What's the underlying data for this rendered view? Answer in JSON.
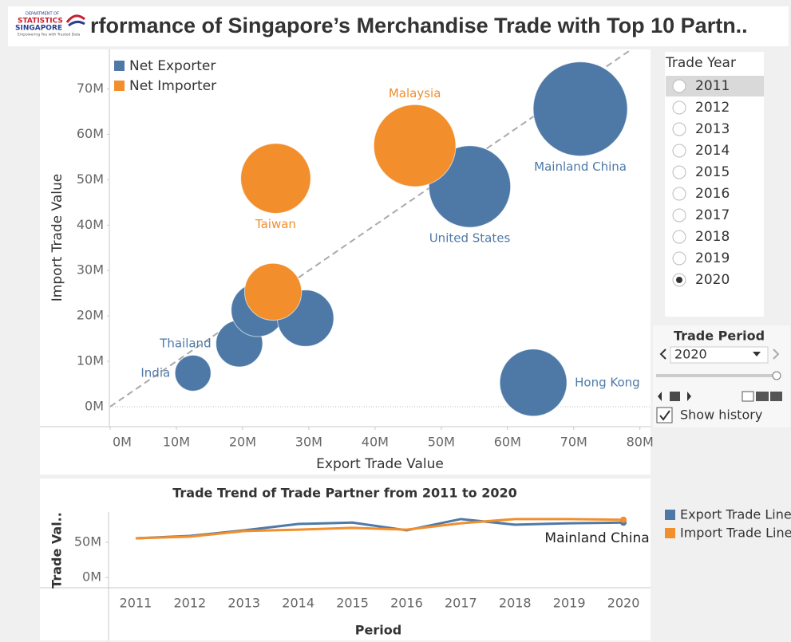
{
  "header": {
    "logo": [
      "DEPARTMENT OF",
      "STATISTICS",
      "SINGAPORE",
      "Empowering You with Trusted Data"
    ],
    "title": "rformance of  Singapore’s Merchandise Trade with  Top 10  Partn.."
  },
  "chart_data": [
    {
      "type": "scatter",
      "x_label": "Export Trade Value",
      "y_label": "Import Trade Value",
      "xlim": [
        0,
        81.6
      ],
      "ylim": [
        -4.4,
        78.7
      ],
      "xticks": [
        {
          "value": 0,
          "label": "0M"
        },
        {
          "value": 10,
          "label": "10M"
        },
        {
          "value": 20,
          "label": "20M"
        },
        {
          "value": 30,
          "label": "30M"
        },
        {
          "value": 40,
          "label": "40M"
        },
        {
          "value": 50,
          "label": "50M"
        },
        {
          "value": 60,
          "label": "60M"
        },
        {
          "value": 70,
          "label": "70M"
        },
        {
          "value": 80,
          "label": "80M"
        }
      ],
      "yticks": [
        {
          "value": 0,
          "label": "0M"
        },
        {
          "value": 10,
          "label": "10M"
        },
        {
          "value": 20,
          "label": "20M"
        },
        {
          "value": 30,
          "label": "30M"
        },
        {
          "value": 40,
          "label": "40M"
        },
        {
          "value": 50,
          "label": "50M"
        },
        {
          "value": 60,
          "label": "60M"
        },
        {
          "value": 70,
          "label": "70M"
        }
      ],
      "diagonal_reference_line": true,
      "zero_line": true,
      "legend": "top-left",
      "series": [
        {
          "name": "Net Exporter",
          "color": "#4e79a7",
          "labels": [
            "India",
            "Thailand",
            null,
            null,
            "United States",
            "Mainland China",
            "Hong Kong"
          ],
          "x": [
            12.5,
            19.5,
            22.3,
            29.5,
            54.3,
            71,
            63.9
          ],
          "values": [
            7.4,
            13.9,
            21.3,
            19.5,
            48.5,
            65.6,
            5.3
          ],
          "sizes": [
            19.9,
            33.4,
            43.6,
            49,
            102.8,
            136.6,
            69.2
          ]
        },
        {
          "name": "Net Importer",
          "color": "#f28e2b",
          "labels": [
            "Taiwan",
            "Malaysia",
            null
          ],
          "x": [
            25,
            46,
            24.6
          ],
          "values": [
            50.3,
            57.5,
            25.3
          ],
          "sizes": [
            75.3,
            103.5,
            49.9
          ]
        }
      ]
    },
    {
      "type": "line",
      "title": "Trade Trend of Trade Partner from 2011 to 2020",
      "y_label": "Trade Val..",
      "x_label": "Period",
      "categories": [
        "2011",
        "2012",
        "2013",
        "2014",
        "2015",
        "2016",
        "2017",
        "2018",
        "2019",
        "2020"
      ],
      "ylim": [
        -14.5,
        93
      ],
      "yticks": [
        {
          "value": 0,
          "label": "0M"
        },
        {
          "value": 50,
          "label": "50M"
        }
      ],
      "annotation": "Mainland China",
      "legend": "right",
      "series": [
        {
          "name": "Export Trade Line",
          "color": "#4e79a7",
          "values": [
            55.7,
            59,
            67,
            76,
            78,
            67,
            83,
            75,
            77,
            78
          ]
        },
        {
          "name": "Import Trade Line",
          "color": "#f28e2b",
          "values": [
            55.7,
            58,
            66,
            68,
            70.5,
            68,
            77,
            83,
            83,
            82
          ]
        }
      ]
    }
  ],
  "controls": {
    "trade_year": {
      "title": "Trade Year",
      "options": [
        "2011",
        "2012",
        "2013",
        "2014",
        "2015",
        "2016",
        "2017",
        "2018",
        "2019",
        "2020"
      ],
      "selected": 9,
      "highlighted": 0
    },
    "trade_period": {
      "title": "Trade Period",
      "value": "2020",
      "show_history": {
        "label": "Show history",
        "checked": true
      }
    }
  }
}
